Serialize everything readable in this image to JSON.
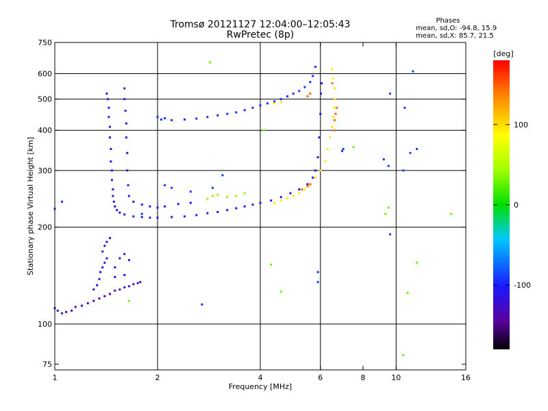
{
  "chart_data": {
    "type": "scatter",
    "title": "Tromsø 20121127 12:04:00–12:05:43",
    "subtitle": "RwPretec (8p)",
    "xlabel": "Frequency [MHz]",
    "ylabel": "Stationary phase Virtual Height [km]",
    "x_scale": "log",
    "y_scale": "log",
    "xlim": [
      1,
      16
    ],
    "ylim": [
      72,
      750
    ],
    "x_ticks": [
      1,
      2,
      4,
      6,
      8,
      10,
      16
    ],
    "x_tick_labels": [
      "1",
      "2",
      "4",
      "6",
      "8",
      "10",
      "16"
    ],
    "x_gridlines": [
      2,
      4,
      6,
      10
    ],
    "y_ticks": [
      75,
      100,
      200,
      300,
      400,
      500,
      600,
      750
    ],
    "y_tick_labels": [
      "75",
      "100",
      "200",
      "300",
      "400",
      "500",
      "600",
      "750"
    ],
    "y_gridlines": [
      100,
      200,
      300,
      400,
      500,
      600
    ],
    "grid": true,
    "legend_placement": "top-right",
    "legend": {
      "heading": "Phases",
      "line1": "mean, sd,O: -94.8, 15.9",
      "line2": "mean, sd,X:  85.7, 21.5"
    },
    "colorbar": {
      "label": "[deg]",
      "ticks": [
        100,
        0,
        -100
      ],
      "tick_labels": [
        "100",
        "0",
        "-100"
      ],
      "range": [
        -180,
        180
      ]
    },
    "series": [
      {
        "phase": -130,
        "points": [
          [
            1.0,
            112
          ],
          [
            1.02,
            110
          ],
          [
            1.05,
            108
          ],
          [
            1.08,
            109
          ],
          [
            1.12,
            110
          ],
          [
            1.15,
            113
          ],
          [
            1.2,
            114
          ],
          [
            1.25,
            116
          ],
          [
            1.3,
            118
          ],
          [
            1.35,
            120
          ],
          [
            1.4,
            122
          ],
          [
            1.45,
            124
          ],
          [
            1.5,
            127
          ],
          [
            1.55,
            128
          ],
          [
            1.6,
            130
          ],
          [
            1.65,
            131
          ],
          [
            1.7,
            133
          ],
          [
            1.75,
            134
          ],
          [
            1.78,
            135
          ]
        ]
      },
      {
        "phase": -115,
        "points": [
          [
            1.3,
            128
          ],
          [
            1.33,
            132
          ],
          [
            1.35,
            138
          ],
          [
            1.36,
            145
          ],
          [
            1.38,
            150
          ],
          [
            1.4,
            155
          ],
          [
            1.42,
            160
          ],
          [
            1.38,
            168
          ],
          [
            1.4,
            175
          ],
          [
            1.42,
            180
          ],
          [
            1.45,
            185
          ],
          [
            1.5,
            150
          ],
          [
            1.55,
            160
          ],
          [
            1.6,
            165
          ],
          [
            1.65,
            158
          ],
          [
            1.5,
            140
          ],
          [
            1.6,
            142
          ]
        ]
      },
      {
        "phase": -110,
        "points": [
          [
            1.42,
            520
          ],
          [
            1.43,
            500
          ],
          [
            1.44,
            470
          ],
          [
            1.44,
            440
          ],
          [
            1.45,
            410
          ],
          [
            1.45,
            380
          ],
          [
            1.46,
            350
          ],
          [
            1.46,
            320
          ],
          [
            1.47,
            300
          ],
          [
            1.47,
            280
          ],
          [
            1.48,
            262
          ],
          [
            1.48,
            250
          ],
          [
            1.49,
            240
          ],
          [
            1.5,
            232
          ],
          [
            1.52,
            226
          ],
          [
            1.55,
            222
          ],
          [
            1.6,
            219
          ],
          [
            1.7,
            216
          ],
          [
            1.8,
            215
          ],
          [
            1.9,
            214
          ],
          [
            2.0,
            214
          ],
          [
            2.2,
            215
          ],
          [
            2.4,
            216
          ],
          [
            2.6,
            218
          ],
          [
            2.8,
            221
          ],
          [
            3.0,
            223
          ],
          [
            3.2,
            226
          ],
          [
            3.4,
            229
          ],
          [
            3.6,
            232
          ],
          [
            3.8,
            235
          ],
          [
            4.0,
            238
          ],
          [
            4.3,
            242
          ],
          [
            4.6,
            248
          ],
          [
            4.9,
            255
          ],
          [
            5.2,
            262
          ],
          [
            5.5,
            272
          ],
          [
            5.7,
            285
          ],
          [
            5.8,
            300
          ],
          [
            5.9,
            330
          ],
          [
            5.95,
            380
          ],
          [
            6.0,
            450
          ],
          [
            6.02,
            520
          ],
          [
            6.05,
            560
          ]
        ]
      },
      {
        "phase": -105,
        "points": [
          [
            1.6,
            540
          ],
          [
            1.6,
            500
          ],
          [
            1.61,
            460
          ],
          [
            1.62,
            420
          ],
          [
            1.62,
            380
          ],
          [
            1.63,
            340
          ],
          [
            1.63,
            300
          ],
          [
            1.64,
            270
          ],
          [
            1.65,
            250
          ],
          [
            1.7,
            240
          ],
          [
            1.8,
            235
          ],
          [
            1.9,
            232
          ],
          [
            2.0,
            230
          ],
          [
            2.1,
            232
          ],
          [
            2.3,
            236
          ],
          [
            2.5,
            238
          ]
        ]
      },
      {
        "phase": -95,
        "points": [
          [
            2.0,
            440
          ],
          [
            2.05,
            432
          ],
          [
            2.1,
            436
          ],
          [
            2.2,
            430
          ],
          [
            2.4,
            432
          ],
          [
            2.6,
            435
          ],
          [
            2.8,
            440
          ],
          [
            3.0,
            445
          ],
          [
            3.2,
            450
          ],
          [
            3.4,
            455
          ],
          [
            3.6,
            462
          ],
          [
            3.8,
            470
          ],
          [
            4.0,
            478
          ],
          [
            4.2,
            485
          ],
          [
            4.4,
            492
          ],
          [
            4.6,
            500
          ],
          [
            4.8,
            510
          ],
          [
            5.0,
            520
          ],
          [
            5.2,
            530
          ],
          [
            5.4,
            545
          ],
          [
            5.6,
            565
          ],
          [
            5.7,
            590
          ],
          [
            5.8,
            630
          ]
        ]
      },
      {
        "phase": 40,
        "points": [
          [
            2.8,
            245
          ],
          [
            2.9,
            250
          ],
          [
            3.0,
            252
          ],
          [
            3.2,
            248
          ],
          [
            3.4,
            250
          ],
          [
            3.6,
            255
          ]
        ]
      },
      {
        "phase": 95,
        "points": [
          [
            4.4,
            238
          ],
          [
            4.6,
            242
          ],
          [
            4.8,
            246
          ],
          [
            5.0,
            250
          ],
          [
            5.2,
            255
          ],
          [
            5.4,
            262
          ],
          [
            5.6,
            270
          ],
          [
            5.8,
            285
          ],
          [
            6.0,
            300
          ],
          [
            6.2,
            320
          ],
          [
            6.3,
            350
          ],
          [
            6.4,
            380
          ],
          [
            6.5,
            410
          ],
          [
            6.55,
            440
          ],
          [
            6.6,
            470
          ],
          [
            6.62,
            500
          ],
          [
            6.6,
            540
          ],
          [
            6.55,
            580
          ],
          [
            6.5,
            620
          ],
          [
            4.4,
            485
          ],
          [
            4.6,
            490
          ]
        ]
      },
      {
        "phase": 145,
        "points": [
          [
            5.3,
            262
          ],
          [
            5.5,
            268
          ],
          [
            5.6,
            272
          ],
          [
            6.6,
            430
          ],
          [
            6.65,
            450
          ],
          [
            6.7,
            470
          ],
          [
            6.6,
            400
          ],
          [
            6.5,
            560
          ],
          [
            5.6,
            520
          ],
          [
            5.5,
            510
          ]
        ]
      },
      {
        "phase": -90,
        "points": [
          [
            0.98,
            235
          ],
          [
            1.0,
            228
          ],
          [
            1.05,
            240
          ],
          [
            1.8,
            220
          ],
          [
            2.1,
            270
          ],
          [
            2.2,
            265
          ],
          [
            2.5,
            258
          ],
          [
            2.9,
            265
          ],
          [
            3.1,
            290
          ],
          [
            6.95,
            345
          ],
          [
            7.0,
            350
          ],
          [
            9.2,
            325
          ],
          [
            9.5,
            310
          ],
          [
            10.5,
            300
          ],
          [
            11.0,
            340
          ],
          [
            11.5,
            350
          ],
          [
            9.6,
            190
          ],
          [
            11.2,
            610
          ],
          [
            10.6,
            470
          ],
          [
            9.6,
            520
          ],
          [
            2.7,
            115
          ],
          [
            5.9,
            135
          ],
          [
            5.9,
            145
          ]
        ]
      },
      {
        "phase": 30,
        "points": [
          [
            2.85,
            650
          ],
          [
            4.1,
            400
          ],
          [
            4.3,
            153
          ],
          [
            4.6,
            126
          ],
          [
            9.3,
            220
          ],
          [
            9.5,
            230
          ],
          [
            10.8,
            125
          ],
          [
            11.5,
            155
          ],
          [
            14.5,
            220
          ],
          [
            7.5,
            355
          ],
          [
            10.5,
            80
          ],
          [
            1.65,
            118
          ]
        ]
      }
    ]
  }
}
